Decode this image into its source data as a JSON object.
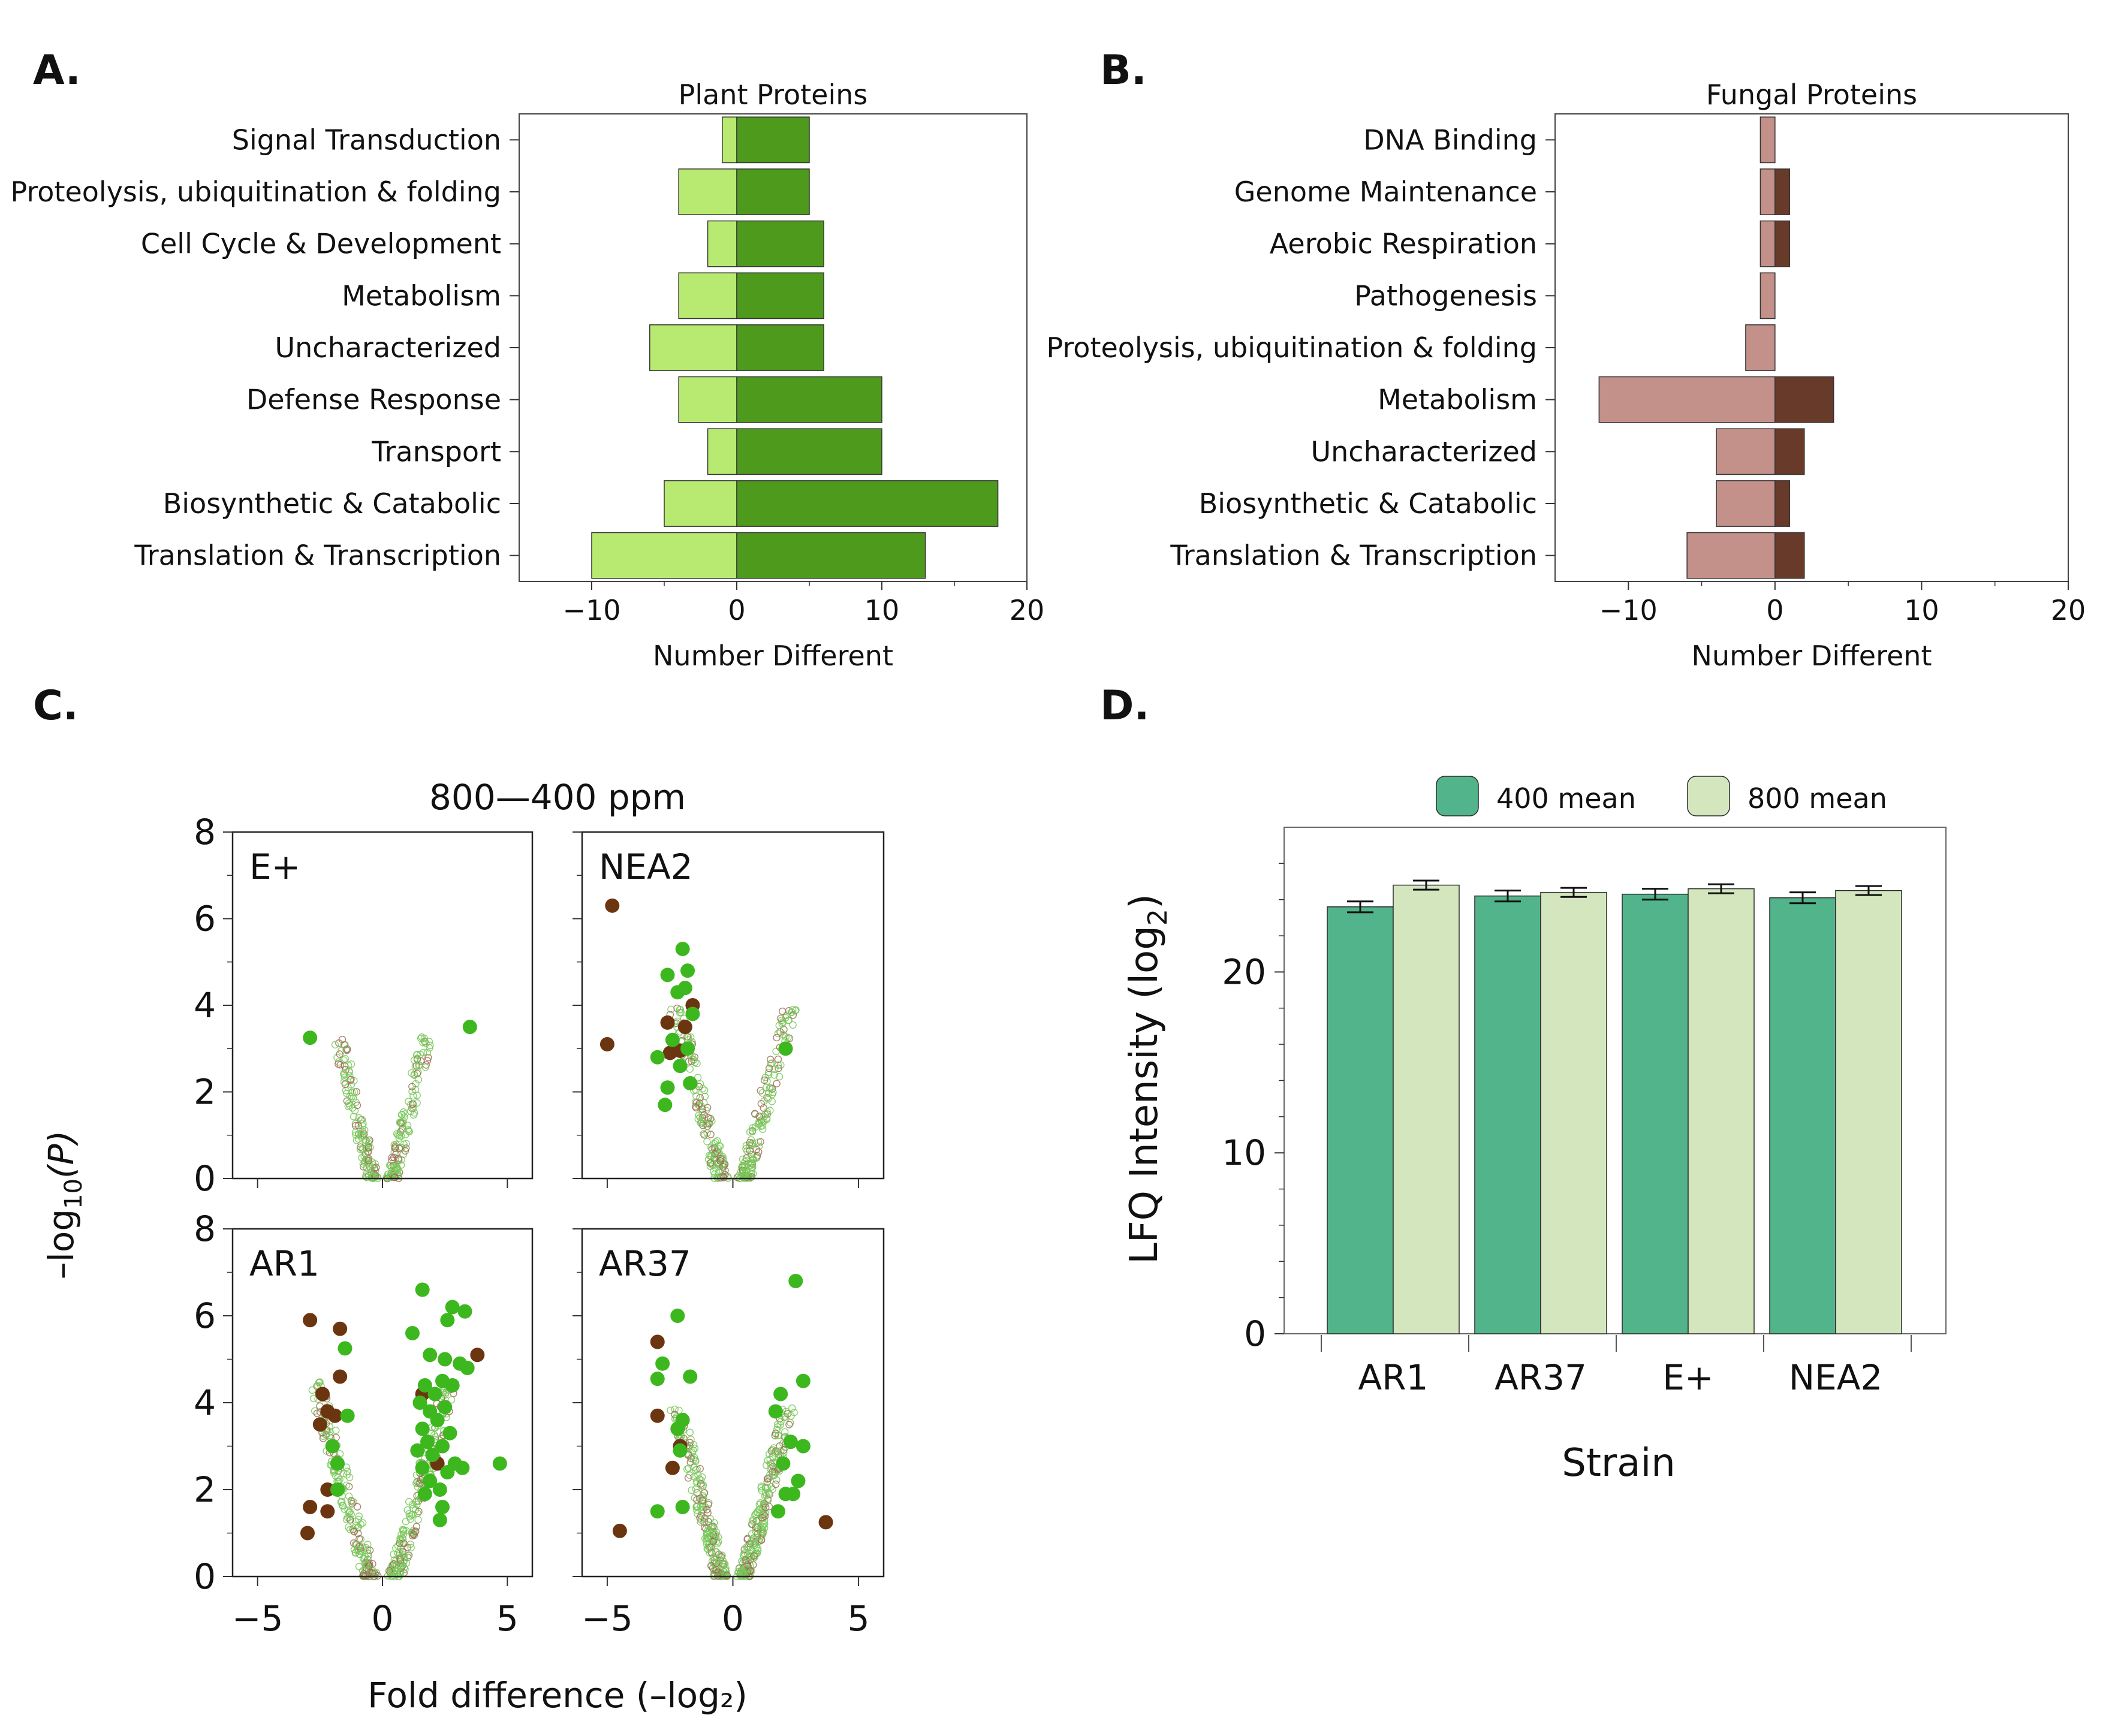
{
  "panel_letters": {
    "a": "A.",
    "b": "B.",
    "c": "C.",
    "d": "D."
  },
  "colors": {
    "plant_dark": "#4e9a1c",
    "plant_light": "#b8ea72",
    "fungal_dark": "#683a2a",
    "fungal_light": "#c4908a",
    "sig_green": "#3cb81e",
    "sig_brown": "#6b3510",
    "ns_green": "#78c85a",
    "ns_brown": "#a06a58",
    "bar400": "#52b48a",
    "bar800": "#d4e6be"
  },
  "chart_data": [
    {
      "id": "A",
      "type": "bar",
      "orientation": "horizontal",
      "stacked": "diverging",
      "title": "Plant Proteins",
      "xlabel": "Number Different",
      "xlim": [
        -15,
        20
      ],
      "xticks": [
        -10,
        0,
        10,
        20
      ],
      "xtick_labels": [
        "−10",
        "0",
        "10",
        "20"
      ],
      "categories": [
        "Signal Transduction",
        "Proteolysis, ubiquitination & folding",
        "Cell Cycle & Development",
        "Metabolism",
        "Uncharacterized",
        "Defense Response",
        "Transport",
        "Biosynthetic & Catabolic",
        "Translation & Transcription"
      ],
      "series": [
        {
          "name": "down",
          "values": [
            -1,
            -4,
            -2,
            -4,
            -6,
            -4,
            -2,
            -5,
            -10
          ]
        },
        {
          "name": "up",
          "values": [
            5,
            5,
            6,
            6,
            6,
            10,
            10,
            18,
            13
          ]
        }
      ]
    },
    {
      "id": "B",
      "type": "bar",
      "orientation": "horizontal",
      "stacked": "diverging",
      "title": "Fungal Proteins",
      "xlabel": "Number Different",
      "xlim": [
        -15,
        20
      ],
      "xticks": [
        -10,
        0,
        10,
        20
      ],
      "xtick_labels": [
        "−10",
        "0",
        "10",
        "20"
      ],
      "categories": [
        "DNA Binding",
        "Genome Maintenance",
        "Aerobic Respiration",
        "Pathogenesis",
        "Proteolysis, ubiquitination & folding",
        "Metabolism",
        "Uncharacterized",
        "Biosynthetic & Catabolic",
        "Translation & Transcription"
      ],
      "series": [
        {
          "name": "down",
          "values": [
            -1,
            -1,
            -1,
            -1,
            -2,
            -12,
            -4,
            -4,
            -6
          ]
        },
        {
          "name": "up",
          "values": [
            0,
            1,
            1,
            0,
            0,
            4,
            2,
            1,
            2
          ]
        }
      ]
    },
    {
      "id": "C",
      "type": "scatter",
      "layout": "2x2 volcano",
      "title": "800—400 ppm",
      "xlabel": "Fold difference (–log₂)",
      "ylabel_prefix": "–log",
      "ylabel_sub": "10",
      "ylabel_suffix": "(P)",
      "xlim": [
        -6,
        6
      ],
      "ylim": [
        0,
        8
      ],
      "xticks": [
        -5,
        0,
        5
      ],
      "xtick_labels": [
        "−5",
        "0",
        "5"
      ],
      "yticks": [
        0,
        2,
        4,
        6,
        8
      ],
      "ytick_labels": [
        "0",
        "2",
        "4",
        "6",
        "8"
      ],
      "panels": [
        {
          "label": "E+",
          "significant": [
            {
              "x": -2.9,
              "y": 3.25,
              "kind": "plant"
            },
            {
              "x": 3.5,
              "y": 3.5,
              "kind": "plant"
            }
          ]
        },
        {
          "label": "NEA2",
          "significant": [
            {
              "x": -4.8,
              "y": 6.3,
              "kind": "fungal"
            },
            {
              "x": -5.0,
              "y": 3.1,
              "kind": "fungal"
            },
            {
              "x": -2.6,
              "y": 3.6,
              "kind": "fungal"
            },
            {
              "x": -2.5,
              "y": 2.9,
              "kind": "fungal"
            },
            {
              "x": -2.1,
              "y": 2.95,
              "kind": "fungal"
            },
            {
              "x": -1.6,
              "y": 4.0,
              "kind": "fungal"
            },
            {
              "x": -1.9,
              "y": 3.5,
              "kind": "fungal"
            },
            {
              "x": -2.6,
              "y": 4.7,
              "kind": "plant"
            },
            {
              "x": -2.0,
              "y": 5.3,
              "kind": "plant"
            },
            {
              "x": -1.8,
              "y": 4.8,
              "kind": "plant"
            },
            {
              "x": -1.9,
              "y": 4.4,
              "kind": "plant"
            },
            {
              "x": -1.6,
              "y": 3.8,
              "kind": "plant"
            },
            {
              "x": -3.0,
              "y": 2.8,
              "kind": "plant"
            },
            {
              "x": -2.4,
              "y": 3.2,
              "kind": "plant"
            },
            {
              "x": -2.2,
              "y": 4.3,
              "kind": "plant"
            },
            {
              "x": -1.8,
              "y": 3.0,
              "kind": "plant"
            },
            {
              "x": -2.1,
              "y": 2.6,
              "kind": "plant"
            },
            {
              "x": -1.7,
              "y": 2.2,
              "kind": "plant"
            },
            {
              "x": -2.6,
              "y": 2.1,
              "kind": "plant"
            },
            {
              "x": -2.7,
              "y": 1.7,
              "kind": "plant"
            },
            {
              "x": 2.1,
              "y": 3.0,
              "kind": "plant"
            }
          ]
        },
        {
          "label": "AR1",
          "significant": [
            {
              "x": -2.9,
              "y": 5.9,
              "kind": "fungal"
            },
            {
              "x": -1.7,
              "y": 5.7,
              "kind": "fungal"
            },
            {
              "x": -1.7,
              "y": 4.6,
              "kind": "fungal"
            },
            {
              "x": -2.4,
              "y": 4.2,
              "kind": "fungal"
            },
            {
              "x": -2.2,
              "y": 3.8,
              "kind": "fungal"
            },
            {
              "x": -1.9,
              "y": 3.7,
              "kind": "fungal"
            },
            {
              "x": -2.5,
              "y": 3.5,
              "kind": "fungal"
            },
            {
              "x": -2.2,
              "y": 2.0,
              "kind": "fungal"
            },
            {
              "x": -2.9,
              "y": 1.6,
              "kind": "fungal"
            },
            {
              "x": -2.2,
              "y": 1.5,
              "kind": "fungal"
            },
            {
              "x": -3.0,
              "y": 1.0,
              "kind": "fungal"
            },
            {
              "x": 3.8,
              "y": 5.1,
              "kind": "fungal"
            },
            {
              "x": 1.6,
              "y": 4.2,
              "kind": "fungal"
            },
            {
              "x": 2.2,
              "y": 2.6,
              "kind": "fungal"
            },
            {
              "x": -1.5,
              "y": 5.25,
              "kind": "plant"
            },
            {
              "x": -1.4,
              "y": 3.7,
              "kind": "plant"
            },
            {
              "x": -2.0,
              "y": 3.0,
              "kind": "plant"
            },
            {
              "x": -1.8,
              "y": 2.6,
              "kind": "plant"
            },
            {
              "x": -1.8,
              "y": 2.0,
              "kind": "plant"
            },
            {
              "x": 1.6,
              "y": 6.6,
              "kind": "plant"
            },
            {
              "x": 2.8,
              "y": 6.2,
              "kind": "plant"
            },
            {
              "x": 3.3,
              "y": 6.1,
              "kind": "plant"
            },
            {
              "x": 2.6,
              "y": 5.9,
              "kind": "plant"
            },
            {
              "x": 1.2,
              "y": 5.6,
              "kind": "plant"
            },
            {
              "x": 1.9,
              "y": 5.1,
              "kind": "plant"
            },
            {
              "x": 2.5,
              "y": 5.0,
              "kind": "plant"
            },
            {
              "x": 3.1,
              "y": 4.9,
              "kind": "plant"
            },
            {
              "x": 3.4,
              "y": 4.8,
              "kind": "plant"
            },
            {
              "x": 2.4,
              "y": 4.5,
              "kind": "plant"
            },
            {
              "x": 1.7,
              "y": 4.4,
              "kind": "plant"
            },
            {
              "x": 2.8,
              "y": 4.4,
              "kind": "plant"
            },
            {
              "x": 2.1,
              "y": 4.2,
              "kind": "plant"
            },
            {
              "x": 1.5,
              "y": 4.0,
              "kind": "plant"
            },
            {
              "x": 2.5,
              "y": 3.9,
              "kind": "plant"
            },
            {
              "x": 1.9,
              "y": 3.8,
              "kind": "plant"
            },
            {
              "x": 2.2,
              "y": 3.6,
              "kind": "plant"
            },
            {
              "x": 1.6,
              "y": 3.4,
              "kind": "plant"
            },
            {
              "x": 2.7,
              "y": 3.3,
              "kind": "plant"
            },
            {
              "x": 1.8,
              "y": 3.1,
              "kind": "plant"
            },
            {
              "x": 2.4,
              "y": 3.0,
              "kind": "plant"
            },
            {
              "x": 1.4,
              "y": 2.9,
              "kind": "plant"
            },
            {
              "x": 2.0,
              "y": 2.8,
              "kind": "plant"
            },
            {
              "x": 2.9,
              "y": 2.6,
              "kind": "plant"
            },
            {
              "x": 1.6,
              "y": 2.5,
              "kind": "plant"
            },
            {
              "x": 2.6,
              "y": 2.4,
              "kind": "plant"
            },
            {
              "x": 3.2,
              "y": 2.5,
              "kind": "plant"
            },
            {
              "x": 1.9,
              "y": 2.2,
              "kind": "plant"
            },
            {
              "x": 2.3,
              "y": 2.0,
              "kind": "plant"
            },
            {
              "x": 1.7,
              "y": 1.9,
              "kind": "plant"
            },
            {
              "x": 2.4,
              "y": 1.6,
              "kind": "plant"
            },
            {
              "x": 2.3,
              "y": 1.3,
              "kind": "plant"
            },
            {
              "x": 4.7,
              "y": 2.6,
              "kind": "plant"
            }
          ]
        },
        {
          "label": "AR37",
          "significant": [
            {
              "x": -3.0,
              "y": 5.4,
              "kind": "fungal"
            },
            {
              "x": -3.0,
              "y": 3.7,
              "kind": "fungal"
            },
            {
              "x": -2.1,
              "y": 3.0,
              "kind": "fungal"
            },
            {
              "x": -2.4,
              "y": 2.5,
              "kind": "fungal"
            },
            {
              "x": -4.5,
              "y": 1.05,
              "kind": "fungal"
            },
            {
              "x": 3.7,
              "y": 1.25,
              "kind": "fungal"
            },
            {
              "x": -2.2,
              "y": 6.0,
              "kind": "plant"
            },
            {
              "x": -2.8,
              "y": 4.9,
              "kind": "plant"
            },
            {
              "x": -3.0,
              "y": 4.55,
              "kind": "plant"
            },
            {
              "x": -1.7,
              "y": 4.6,
              "kind": "plant"
            },
            {
              "x": -2.0,
              "y": 3.6,
              "kind": "plant"
            },
            {
              "x": -2.2,
              "y": 3.4,
              "kind": "plant"
            },
            {
              "x": -2.1,
              "y": 2.9,
              "kind": "plant"
            },
            {
              "x": -3.0,
              "y": 1.5,
              "kind": "plant"
            },
            {
              "x": -2.0,
              "y": 1.6,
              "kind": "plant"
            },
            {
              "x": 2.5,
              "y": 6.8,
              "kind": "plant"
            },
            {
              "x": 2.8,
              "y": 4.5,
              "kind": "plant"
            },
            {
              "x": 1.9,
              "y": 4.2,
              "kind": "plant"
            },
            {
              "x": 1.7,
              "y": 3.8,
              "kind": "plant"
            },
            {
              "x": 2.3,
              "y": 3.1,
              "kind": "plant"
            },
            {
              "x": 2.8,
              "y": 3.0,
              "kind": "plant"
            },
            {
              "x": 2.0,
              "y": 2.6,
              "kind": "plant"
            },
            {
              "x": 2.6,
              "y": 2.2,
              "kind": "plant"
            },
            {
              "x": 2.1,
              "y": 1.9,
              "kind": "plant"
            },
            {
              "x": 2.4,
              "y": 1.9,
              "kind": "plant"
            },
            {
              "x": 1.8,
              "y": 1.5,
              "kind": "plant"
            }
          ]
        }
      ]
    },
    {
      "id": "D",
      "type": "bar",
      "orientation": "vertical",
      "grouped": true,
      "xlabel": "Strain",
      "ylabel_prefix": "LFQ Intensity (log",
      "ylabel_sub": "2",
      "ylabel_suffix": ")",
      "ylim": [
        0,
        28
      ],
      "yticks": [
        0,
        10,
        20
      ],
      "ytick_labels": [
        "0",
        "10",
        "20"
      ],
      "categories": [
        "AR1",
        "AR37",
        "E+",
        "NEA2"
      ],
      "series": [
        {
          "name": "400 mean",
          "values": [
            23.6,
            24.2,
            24.3,
            24.1
          ],
          "errors": [
            0.3,
            0.3,
            0.3,
            0.3
          ]
        },
        {
          "name": "800 mean",
          "values": [
            24.8,
            24.4,
            24.6,
            24.5
          ],
          "errors": [
            0.25,
            0.25,
            0.25,
            0.25
          ]
        }
      ]
    }
  ]
}
